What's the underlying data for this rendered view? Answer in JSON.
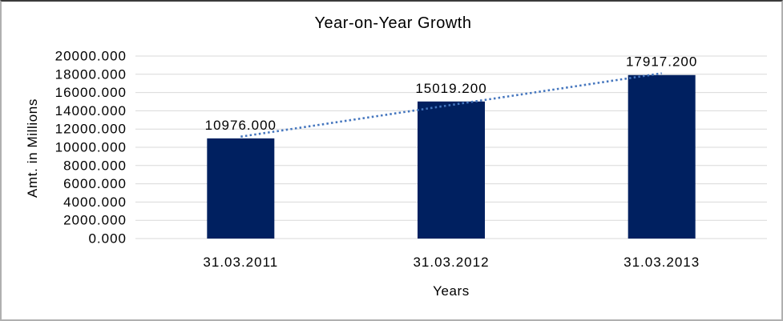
{
  "chart_data": {
    "type": "bar",
    "title": "Year-on-Year Growth",
    "xlabel": "Years",
    "ylabel": "Amt. in Millions",
    "categories": [
      "31.03.2011",
      "31.03.2012",
      "31.03.2013"
    ],
    "values": [
      10976.0,
      15019.2,
      17917.2
    ],
    "data_labels": [
      "10976.000",
      "15019.200",
      "17917.200"
    ],
    "ylim": [
      0,
      20000
    ],
    "ytick_step": 2000,
    "ytick_labels": [
      "0.000",
      "2000.000",
      "4000.000",
      "6000.000",
      "8000.000",
      "10000.000",
      "12000.000",
      "14000.000",
      "16000.000",
      "18000.000",
      "20000.000"
    ],
    "grid": "horizontal",
    "legend": "none",
    "bar_color": "#002060",
    "gridline_color": "#d9d9d9",
    "text_color": "#000000",
    "trendline": {
      "type": "linear",
      "style": "dotted",
      "color": "#4576be"
    }
  }
}
